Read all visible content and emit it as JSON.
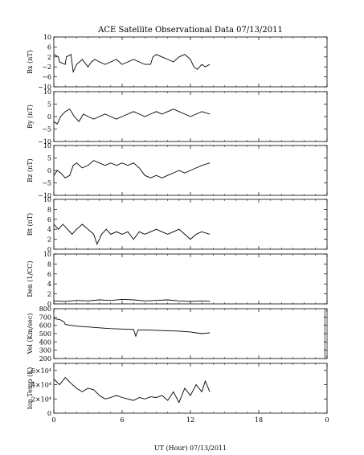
{
  "title": "ACE Satellite Observational Data   07/13/2011",
  "xlabel": "UT (Hour)  07/13/2011",
  "x_ticks": [
    "0",
    "6",
    "12",
    "18",
    "0"
  ],
  "chart_data": [
    {
      "type": "line",
      "ylabel": "Bx (nT)",
      "ylim": [
        -10,
        10
      ],
      "y_ticks": [
        "10",
        "6",
        "2",
        "−2",
        "−6",
        "−10"
      ],
      "y_tick_values": [
        10,
        6,
        2,
        -2,
        -6,
        -10
      ],
      "x": [
        0,
        0.4,
        0.5,
        1.0,
        1.1,
        1.5,
        1.7,
        2.0,
        2.5,
        3.0,
        3.3,
        3.6,
        4.0,
        4.5,
        5.0,
        5.5,
        6.0,
        6.5,
        7.0,
        7.5,
        8.0,
        8.5,
        8.7,
        9.0,
        9.5,
        10.0,
        10.5,
        11.0,
        11.5,
        12.0,
        12.3,
        12.6,
        13.0,
        13.3,
        13.7
      ],
      "series": [
        {
          "values": [
            3,
            2,
            0,
            -1,
            2,
            3,
            -4,
            -1,
            1,
            -2,
            0,
            1,
            0,
            -1,
            0,
            1,
            -1,
            0,
            1,
            0,
            -1,
            -1,
            2,
            3,
            2,
            1,
            0,
            2,
            3,
            1,
            -2,
            -3,
            -1,
            -2,
            -1
          ]
        }
      ]
    },
    {
      "type": "line",
      "ylabel": "By (nT)",
      "ylim": [
        -10,
        10
      ],
      "y_ticks": [
        "10",
        "5",
        "0",
        "−5",
        "−10"
      ],
      "y_tick_values": [
        10,
        5,
        0,
        -5,
        -10
      ],
      "x": [
        0,
        0.3,
        0.6,
        1.0,
        1.4,
        1.8,
        2.2,
        2.6,
        3.0,
        3.5,
        4.0,
        4.5,
        5.0,
        5.5,
        6.0,
        6.5,
        7.0,
        7.5,
        8.0,
        8.5,
        9.0,
        9.5,
        10.0,
        10.5,
        11.0,
        11.5,
        12.0,
        12.5,
        13.0,
        13.7
      ],
      "series": [
        {
          "values": [
            -2,
            -3,
            0,
            2,
            3,
            0,
            -2,
            1,
            0,
            -1,
            0,
            1,
            0,
            -1,
            0,
            1,
            2,
            1,
            0,
            1,
            2,
            1,
            2,
            3,
            2,
            1,
            0,
            1,
            2,
            1
          ]
        }
      ]
    },
    {
      "type": "line",
      "ylabel": "Bz (nT)",
      "ylim": [
        -10,
        10
      ],
      "y_ticks": [
        "10",
        "5",
        "0",
        "−5",
        "−10"
      ],
      "y_tick_values": [
        10,
        5,
        0,
        -5,
        -10
      ],
      "x": [
        0,
        0.3,
        0.6,
        1.0,
        1.4,
        1.7,
        2.0,
        2.5,
        3.0,
        3.5,
        4.0,
        4.5,
        5.0,
        5.5,
        6.0,
        6.5,
        7.0,
        7.5,
        8.0,
        8.5,
        9.0,
        9.5,
        10.0,
        10.5,
        11.0,
        11.5,
        12.0,
        12.5,
        13.0,
        13.7
      ],
      "series": [
        {
          "values": [
            -2,
            0,
            -1,
            -3,
            -2,
            2,
            3,
            1,
            2,
            4,
            3,
            2,
            3,
            2,
            3,
            2,
            3,
            1,
            -2,
            -3,
            -2,
            -3,
            -2,
            -1,
            0,
            -1,
            0,
            1,
            2,
            3
          ]
        }
      ]
    },
    {
      "type": "line",
      "ylabel": "Bt (nT)",
      "ylim": [
        0,
        10
      ],
      "y_ticks": [
        "10",
        "8",
        "6",
        "4",
        "2",
        "0"
      ],
      "y_tick_values": [
        10,
        8,
        6,
        4,
        2,
        0
      ],
      "x": [
        0,
        0.4,
        0.8,
        1.2,
        1.6,
        2.0,
        2.5,
        3.0,
        3.5,
        3.8,
        4.2,
        4.6,
        5.0,
        5.5,
        6.0,
        6.5,
        7.0,
        7.5,
        8.0,
        8.5,
        9.0,
        9.5,
        10.0,
        10.5,
        11.0,
        11.5,
        12.0,
        12.5,
        13.0,
        13.7
      ],
      "series": [
        {
          "values": [
            5,
            4,
            5,
            4,
            3,
            4,
            5,
            4,
            3,
            1,
            3,
            4,
            3,
            3.5,
            3,
            3.5,
            2,
            3.5,
            3,
            3.5,
            4,
            3.5,
            3,
            3.5,
            4,
            3,
            2,
            3,
            3.5,
            3
          ]
        }
      ]
    },
    {
      "type": "line",
      "ylabel": "Den (1/CC)",
      "ylim": [
        0,
        10
      ],
      "y_ticks": [
        "10",
        "8",
        "6",
        "4",
        "2",
        "0"
      ],
      "y_tick_values": [
        10,
        8,
        6,
        4,
        2,
        0
      ],
      "x": [
        0,
        1,
        2,
        3,
        4,
        5,
        6,
        7,
        8,
        9,
        10,
        11,
        12,
        13,
        13.7
      ],
      "series": [
        {
          "values": [
            0.6,
            0.5,
            0.7,
            0.6,
            0.8,
            0.7,
            0.9,
            0.8,
            0.6,
            0.7,
            0.8,
            0.6,
            0.5,
            0.6,
            0.5
          ]
        }
      ]
    },
    {
      "type": "line",
      "ylabel": "Vel (Km/sec)",
      "ylim": [
        200,
        800
      ],
      "y_ticks": [
        "800",
        "700",
        "600",
        "500",
        "400",
        "300",
        "200"
      ],
      "y_tick_values": [
        800,
        700,
        600,
        500,
        400,
        300,
        200
      ],
      "x": [
        0,
        0.5,
        0.9,
        1.0,
        1.5,
        2.0,
        3.0,
        4.0,
        5.0,
        6.0,
        7.0,
        7.2,
        7.4,
        8.0,
        9.0,
        10.0,
        11.0,
        12.0,
        12.5,
        13.0,
        13.7
      ],
      "series": [
        {
          "values": [
            680,
            670,
            640,
            610,
            600,
            590,
            580,
            570,
            560,
            555,
            550,
            470,
            545,
            545,
            540,
            535,
            530,
            520,
            510,
            500,
            510
          ]
        }
      ]
    },
    {
      "type": "line",
      "ylabel": "Ion Temp (K)",
      "ylim": [
        0,
        70000
      ],
      "y_ticks": [
        "6×10⁴",
        "4×10⁴",
        "2×10⁴",
        "0"
      ],
      "y_tick_values": [
        60000,
        40000,
        20000,
        0
      ],
      "x": [
        0,
        0.5,
        1.0,
        1.5,
        2.0,
        2.5,
        3.0,
        3.5,
        4.0,
        4.5,
        5.0,
        5.5,
        6.0,
        6.5,
        7.0,
        7.5,
        8.0,
        8.5,
        9.0,
        9.5,
        10.0,
        10.5,
        11.0,
        11.5,
        12.0,
        12.5,
        13.0,
        13.3,
        13.7
      ],
      "series": [
        {
          "values": [
            48000,
            40000,
            50000,
            42000,
            35000,
            30000,
            35000,
            33000,
            25000,
            20000,
            22000,
            25000,
            22000,
            20000,
            18000,
            22000,
            20000,
            23000,
            22000,
            25000,
            18000,
            30000,
            15000,
            35000,
            25000,
            40000,
            30000,
            45000,
            30000
          ]
        }
      ]
    }
  ]
}
